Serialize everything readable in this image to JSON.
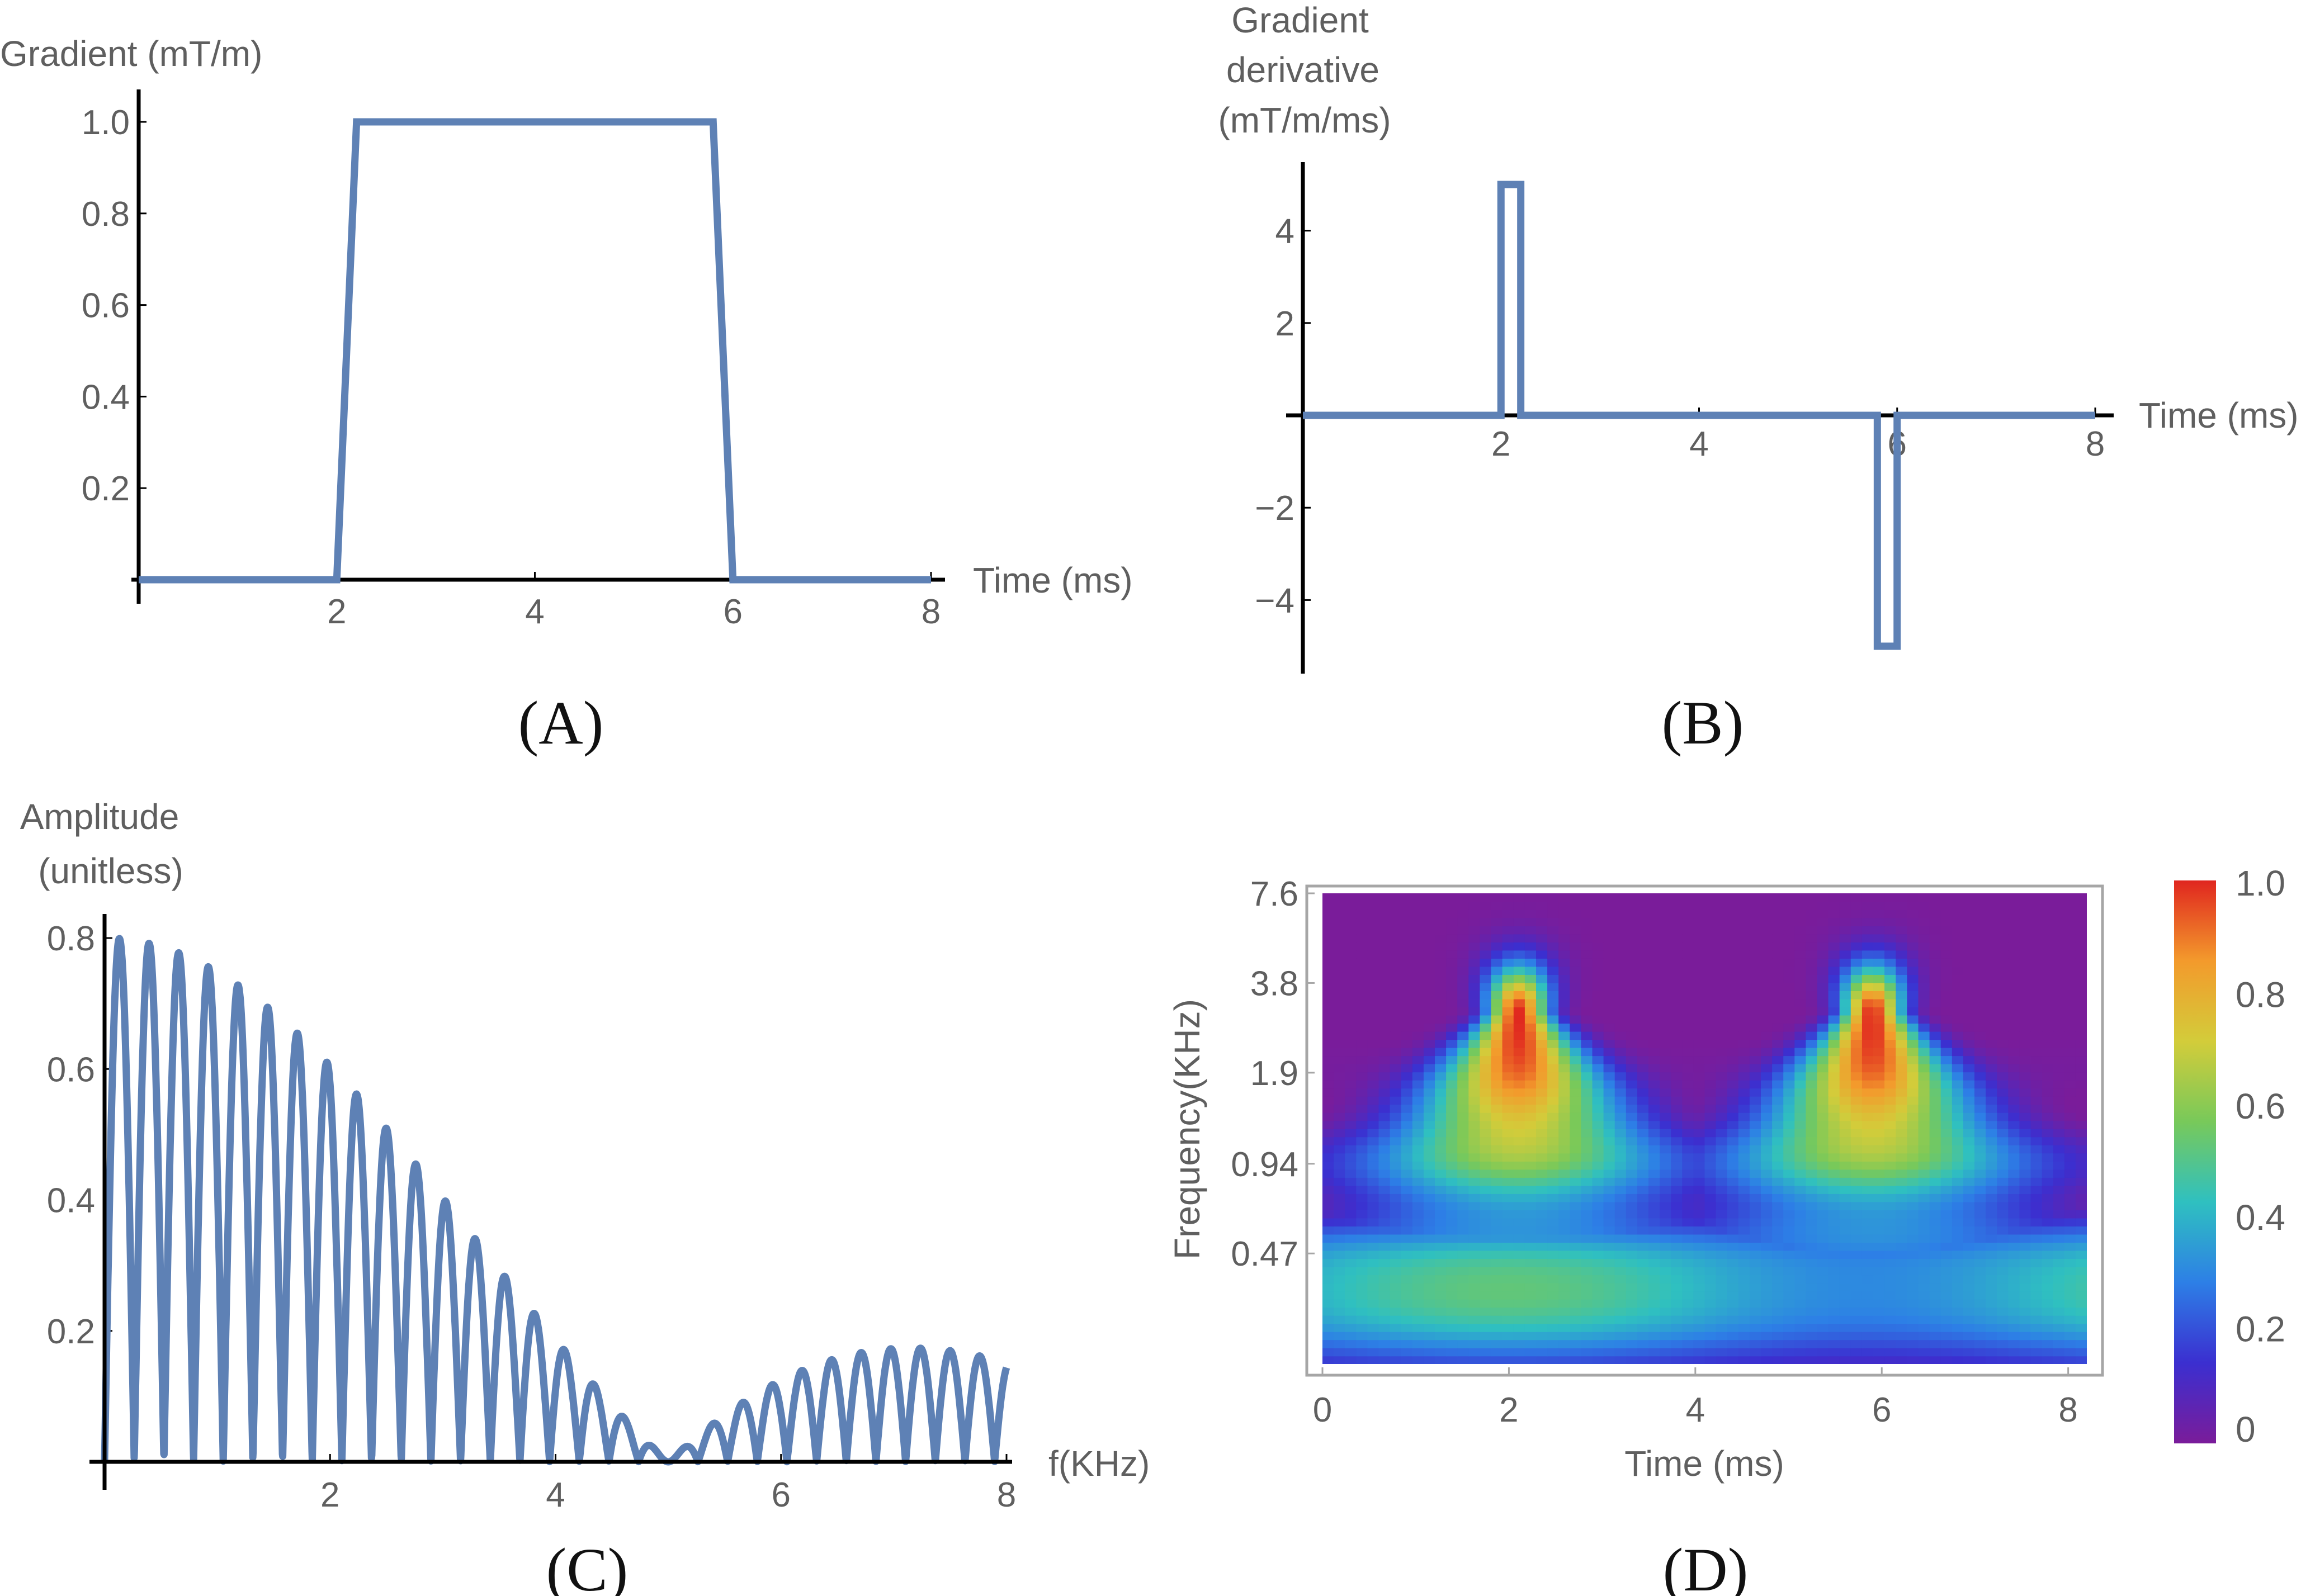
{
  "colors": {
    "series": "#5e81b5",
    "axis": "#000000",
    "frame": "#a6a6a6",
    "text": "#5f5f5f",
    "colormap": [
      "#7a1c9a",
      "#3b2fd0",
      "#2d7fe6",
      "#2fc0c0",
      "#78c95a",
      "#d3cc3a",
      "#f39a2c",
      "#e0261f"
    ]
  },
  "chart_data": [
    {
      "id": "A",
      "panel_label": "(A)",
      "type": "line",
      "ylabel": "Gradient (mT/m)",
      "xlabel": "Time (ms)",
      "xlim": [
        0,
        8
      ],
      "ylim": [
        0,
        1.0
      ],
      "xticks": [
        2,
        4,
        6,
        8
      ],
      "yticks": [
        0.2,
        0.4,
        0.6,
        0.8,
        1.0
      ],
      "xtick_labels": [
        "2",
        "4",
        "6",
        "8"
      ],
      "ytick_labels": [
        "0.2",
        "0.4",
        "0.6",
        "0.8",
        "1.0"
      ],
      "x": [
        0,
        2.0,
        2.2,
        5.8,
        6.0,
        8.0
      ],
      "y": [
        0,
        0,
        1.0,
        1.0,
        0,
        0
      ]
    },
    {
      "id": "B",
      "panel_label": "(B)",
      "type": "line",
      "ylabel": [
        "Gradient",
        "derivative",
        "(mT/m/ms)"
      ],
      "xlabel": "Time (ms)",
      "xlim": [
        0,
        8
      ],
      "ylim": [
        -5.5,
        5.5
      ],
      "xticks": [
        2,
        4,
        6,
        8
      ],
      "yticks": [
        -4,
        -2,
        2,
        4
      ],
      "xtick_labels": [
        "2",
        "4",
        "6",
        "8"
      ],
      "ytick_labels": [
        "−4",
        "−2",
        "2",
        "4"
      ],
      "x": [
        0,
        2.0,
        2.0,
        2.2,
        2.2,
        5.8,
        5.8,
        6.0,
        6.0,
        8.0
      ],
      "y": [
        0,
        0,
        5,
        5,
        0,
        0,
        -5,
        -5,
        0,
        0
      ]
    },
    {
      "id": "C",
      "panel_label": "(C)",
      "type": "line",
      "ylabel": [
        "Amplitude",
        "(unitless)"
      ],
      "xlabel": "f(KHz)",
      "xlim": [
        0,
        8
      ],
      "ylim": [
        0,
        0.85
      ],
      "xticks": [
        2,
        4,
        6,
        8
      ],
      "yticks": [
        0.2,
        0.4,
        0.6,
        0.8
      ],
      "xtick_labels": [
        "2",
        "4",
        "6",
        "8"
      ],
      "ytick_labels": [
        "0.2",
        "0.4",
        "0.6",
        "0.8"
      ],
      "model": "|sin(pi*f*0.2)/(pi*f*0.2) * sin(pi*f*3.8)|, 0.8 peak",
      "peaks": [
        {
          "f": 0.13,
          "a": 0.8
        },
        {
          "f": 0.39,
          "a": 0.79
        },
        {
          "f": 0.66,
          "a": 0.78
        },
        {
          "f": 0.92,
          "a": 0.76
        },
        {
          "f": 1.18,
          "a": 0.73
        },
        {
          "f": 1.45,
          "a": 0.7
        },
        {
          "f": 1.71,
          "a": 0.66
        },
        {
          "f": 1.97,
          "a": 0.62
        },
        {
          "f": 2.24,
          "a": 0.57
        },
        {
          "f": 2.5,
          "a": 0.52
        },
        {
          "f": 2.76,
          "a": 0.46
        },
        {
          "f": 3.03,
          "a": 0.4
        },
        {
          "f": 3.29,
          "a": 0.34
        },
        {
          "f": 3.55,
          "a": 0.28
        },
        {
          "f": 3.82,
          "a": 0.21
        },
        {
          "f": 4.08,
          "a": 0.15
        },
        {
          "f": 4.34,
          "a": 0.1
        },
        {
          "f": 4.61,
          "a": 0.05
        },
        {
          "f": 5.39,
          "a": 0.05
        },
        {
          "f": 5.66,
          "a": 0.09
        },
        {
          "f": 5.92,
          "a": 0.12
        },
        {
          "f": 6.18,
          "a": 0.14
        },
        {
          "f": 6.45,
          "a": 0.155
        },
        {
          "f": 6.71,
          "a": 0.165
        },
        {
          "f": 6.97,
          "a": 0.17
        },
        {
          "f": 7.24,
          "a": 0.17
        },
        {
          "f": 7.5,
          "a": 0.165
        },
        {
          "f": 7.76,
          "a": 0.16
        }
      ]
    },
    {
      "id": "D",
      "panel_label": "(D)",
      "type": "heatmap",
      "xlabel": "Time (ms)",
      "ylabel": "Frequency(KHz)",
      "xlim": [
        0,
        8.2
      ],
      "ylim": [
        0.2,
        7.6
      ],
      "yscale": "log",
      "xticks": [
        0,
        2,
        4,
        6,
        8
      ],
      "xtick_labels": [
        "0",
        "2",
        "4",
        "6",
        "8"
      ],
      "yticks": [
        0.47,
        0.94,
        1.9,
        3.8,
        7.6
      ],
      "ytick_labels": [
        "0.47",
        "0.94",
        "1.9",
        "3.8",
        "7.6"
      ],
      "colorbar": {
        "range": [
          0,
          1.0
        ],
        "ticks": [
          0,
          0.2,
          0.4,
          0.6,
          0.8,
          1.0
        ],
        "tick_labels": [
          "0",
          "0.2",
          "0.4",
          "0.6",
          "0.8",
          "1.0"
        ]
      },
      "hotspots": [
        {
          "time_ms": 2.1,
          "freq_khz": 3.0,
          "value": 1.0
        },
        {
          "time_ms": 5.9,
          "freq_khz": 3.0,
          "value": 1.0
        }
      ],
      "low_band": {
        "freq_khz": 0.35,
        "value": 0.55
      }
    }
  ]
}
